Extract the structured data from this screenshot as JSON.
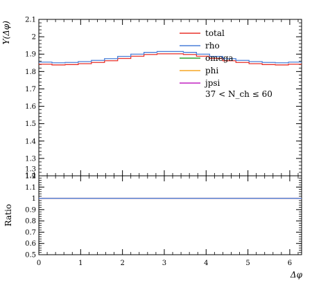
{
  "chart_data": {
    "type": "line",
    "upper": {
      "ylabel": "Y(Δφ)",
      "ylim": [
        1.2,
        2.1
      ],
      "yticks": [
        1.3,
        1.4,
        1.5,
        1.6,
        1.7,
        1.8,
        1.9,
        2.0,
        2.1
      ],
      "ytick_labels": [
        "1.3",
        "1.4",
        "1.5",
        "1.6",
        "1.7",
        "1.8",
        "1.9",
        "2",
        "2.1"
      ]
    },
    "lower": {
      "ylabel": "Ratio",
      "ylim": [
        0.5,
        1.2
      ],
      "yticks": [
        0.5,
        0.6,
        0.7,
        0.8,
        0.9,
        1.0,
        1.1,
        1.2
      ],
      "ytick_labels": [
        "0.5",
        "0.6",
        "0.7",
        "0.8",
        "0.9",
        "1",
        "1.1",
        "1.2"
      ],
      "minor_labels": [
        "1.3",
        "1.4"
      ],
      "ratio_value": 1.0
    },
    "xlabel": "Δφ",
    "xlim": [
      0,
      6.2832
    ],
    "xticks": [
      0,
      1,
      2,
      3,
      4,
      5,
      6
    ],
    "xtick_labels": [
      "0",
      "1",
      "2",
      "3",
      "4",
      "5",
      "6"
    ],
    "bin_edges": [
      0,
      0.3142,
      0.6283,
      0.9425,
      1.2566,
      1.5708,
      1.885,
      2.1991,
      2.5133,
      2.8274,
      3.1416,
      3.4558,
      3.7699,
      4.0841,
      4.3982,
      4.7124,
      5.0265,
      5.3407,
      5.6549,
      5.969,
      6.2832
    ],
    "series": [
      {
        "name": "total",
        "color": "#e8312a",
        "values": [
          1.842,
          1.838,
          1.84,
          1.845,
          1.852,
          1.862,
          1.875,
          1.888,
          1.898,
          1.902,
          1.902,
          1.898,
          1.888,
          1.875,
          1.862,
          1.852,
          1.845,
          1.84,
          1.838,
          1.842
        ]
      },
      {
        "name": "rho",
        "color": "#4a7fd8",
        "values": [
          1.854,
          1.85,
          1.852,
          1.857,
          1.864,
          1.874,
          1.887,
          1.9,
          1.91,
          1.915,
          1.915,
          1.91,
          1.9,
          1.887,
          1.874,
          1.864,
          1.857,
          1.852,
          1.85,
          1.854
        ]
      },
      {
        "name": "omega",
        "color": "#2ca02c",
        "values": []
      },
      {
        "name": "phi",
        "color": "#f5a623",
        "values": []
      },
      {
        "name": "jpsi",
        "color": "#c020c0",
        "values": []
      }
    ],
    "annotation": "37 < N_ch ≤ 60"
  }
}
